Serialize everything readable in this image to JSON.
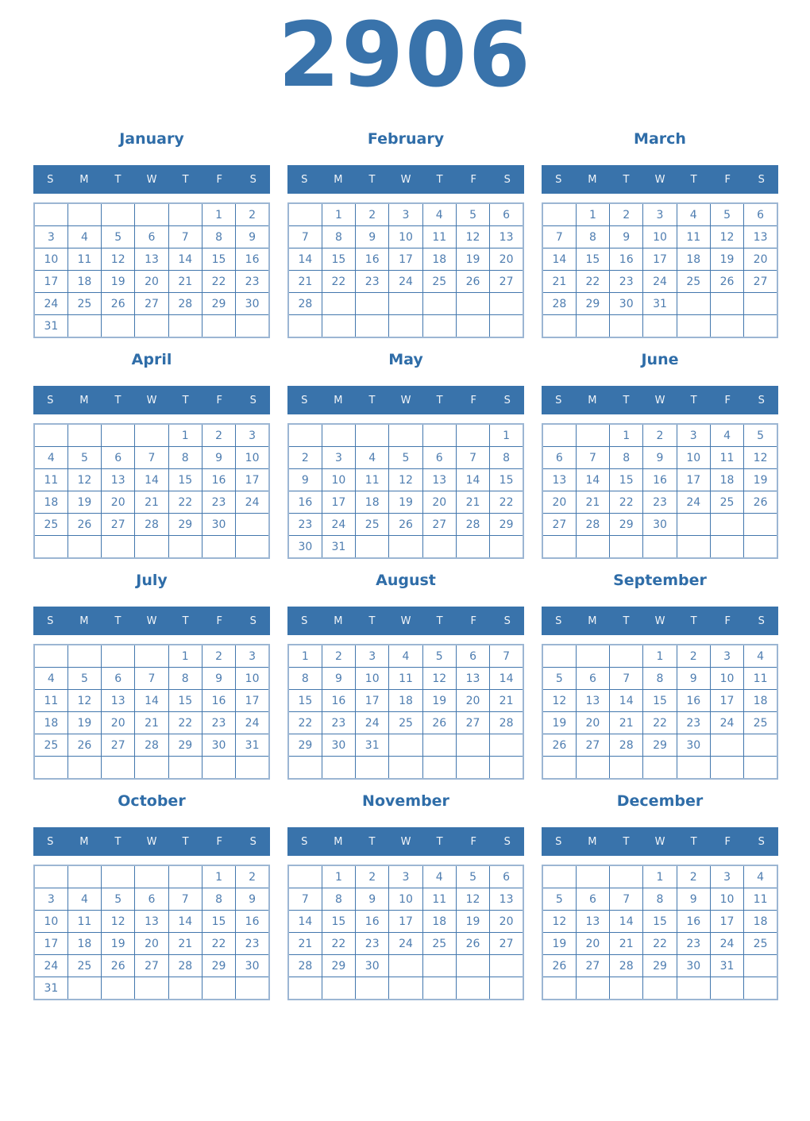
{
  "year": "2906",
  "weekday_headers": [
    "S",
    "M",
    "T",
    "W",
    "T",
    "F",
    "S"
  ],
  "colors": {
    "accent_blue": "#3973ab",
    "month_title_text": "#2f6da8",
    "day_number_text": "#4e7db0",
    "grid_inner_border": "#4377ad",
    "grid_outer_border": "#9cb6d3",
    "weekday_header_text": "#ffffff",
    "page_background": "#ffffff"
  },
  "months": [
    {
      "name": "January",
      "weeks": [
        [
          "",
          "",
          "",
          "",
          "",
          "1",
          "2"
        ],
        [
          "3",
          "4",
          "5",
          "6",
          "7",
          "8",
          "9"
        ],
        [
          "10",
          "11",
          "12",
          "13",
          "14",
          "15",
          "16"
        ],
        [
          "17",
          "18",
          "19",
          "20",
          "21",
          "22",
          "23"
        ],
        [
          "24",
          "25",
          "26",
          "27",
          "28",
          "29",
          "30"
        ],
        [
          "31",
          "",
          "",
          "",
          "",
          "",
          ""
        ]
      ]
    },
    {
      "name": "February",
      "weeks": [
        [
          "",
          "1",
          "2",
          "3",
          "4",
          "5",
          "6"
        ],
        [
          "7",
          "8",
          "9",
          "10",
          "11",
          "12",
          "13"
        ],
        [
          "14",
          "15",
          "16",
          "17",
          "18",
          "19",
          "20"
        ],
        [
          "21",
          "22",
          "23",
          "24",
          "25",
          "26",
          "27"
        ],
        [
          "28",
          "",
          "",
          "",
          "",
          "",
          ""
        ],
        [
          "",
          "",
          "",
          "",
          "",
          "",
          ""
        ]
      ]
    },
    {
      "name": "March",
      "weeks": [
        [
          "",
          "1",
          "2",
          "3",
          "4",
          "5",
          "6"
        ],
        [
          "7",
          "8",
          "9",
          "10",
          "11",
          "12",
          "13"
        ],
        [
          "14",
          "15",
          "16",
          "17",
          "18",
          "19",
          "20"
        ],
        [
          "21",
          "22",
          "23",
          "24",
          "25",
          "26",
          "27"
        ],
        [
          "28",
          "29",
          "30",
          "31",
          "",
          "",
          ""
        ],
        [
          "",
          "",
          "",
          "",
          "",
          "",
          ""
        ]
      ]
    },
    {
      "name": "April",
      "weeks": [
        [
          "",
          "",
          "",
          "",
          "1",
          "2",
          "3"
        ],
        [
          "4",
          "5",
          "6",
          "7",
          "8",
          "9",
          "10"
        ],
        [
          "11",
          "12",
          "13",
          "14",
          "15",
          "16",
          "17"
        ],
        [
          "18",
          "19",
          "20",
          "21",
          "22",
          "23",
          "24"
        ],
        [
          "25",
          "26",
          "27",
          "28",
          "29",
          "30",
          ""
        ],
        [
          "",
          "",
          "",
          "",
          "",
          "",
          ""
        ]
      ]
    },
    {
      "name": "May",
      "weeks": [
        [
          "",
          "",
          "",
          "",
          "",
          "",
          "1"
        ],
        [
          "2",
          "3",
          "4",
          "5",
          "6",
          "7",
          "8"
        ],
        [
          "9",
          "10",
          "11",
          "12",
          "13",
          "14",
          "15"
        ],
        [
          "16",
          "17",
          "18",
          "19",
          "20",
          "21",
          "22"
        ],
        [
          "23",
          "24",
          "25",
          "26",
          "27",
          "28",
          "29"
        ],
        [
          "30",
          "31",
          "",
          "",
          "",
          "",
          ""
        ]
      ]
    },
    {
      "name": "June",
      "weeks": [
        [
          "",
          "",
          "1",
          "2",
          "3",
          "4",
          "5"
        ],
        [
          "6",
          "7",
          "8",
          "9",
          "10",
          "11",
          "12"
        ],
        [
          "13",
          "14",
          "15",
          "16",
          "17",
          "18",
          "19"
        ],
        [
          "20",
          "21",
          "22",
          "23",
          "24",
          "25",
          "26"
        ],
        [
          "27",
          "28",
          "29",
          "30",
          "",
          "",
          ""
        ],
        [
          "",
          "",
          "",
          "",
          "",
          "",
          ""
        ]
      ]
    },
    {
      "name": "July",
      "weeks": [
        [
          "",
          "",
          "",
          "",
          "1",
          "2",
          "3"
        ],
        [
          "4",
          "5",
          "6",
          "7",
          "8",
          "9",
          "10"
        ],
        [
          "11",
          "12",
          "13",
          "14",
          "15",
          "16",
          "17"
        ],
        [
          "18",
          "19",
          "20",
          "21",
          "22",
          "23",
          "24"
        ],
        [
          "25",
          "26",
          "27",
          "28",
          "29",
          "30",
          "31"
        ],
        [
          "",
          "",
          "",
          "",
          "",
          "",
          ""
        ]
      ]
    },
    {
      "name": "August",
      "weeks": [
        [
          "1",
          "2",
          "3",
          "4",
          "5",
          "6",
          "7"
        ],
        [
          "8",
          "9",
          "10",
          "11",
          "12",
          "13",
          "14"
        ],
        [
          "15",
          "16",
          "17",
          "18",
          "19",
          "20",
          "21"
        ],
        [
          "22",
          "23",
          "24",
          "25",
          "26",
          "27",
          "28"
        ],
        [
          "29",
          "30",
          "31",
          "",
          "",
          "",
          ""
        ],
        [
          "",
          "",
          "",
          "",
          "",
          "",
          ""
        ]
      ]
    },
    {
      "name": "September",
      "weeks": [
        [
          "",
          "",
          "",
          "1",
          "2",
          "3",
          "4"
        ],
        [
          "5",
          "6",
          "7",
          "8",
          "9",
          "10",
          "11"
        ],
        [
          "12",
          "13",
          "14",
          "15",
          "16",
          "17",
          "18"
        ],
        [
          "19",
          "20",
          "21",
          "22",
          "23",
          "24",
          "25"
        ],
        [
          "26",
          "27",
          "28",
          "29",
          "30",
          "",
          ""
        ],
        [
          "",
          "",
          "",
          "",
          "",
          "",
          ""
        ]
      ]
    },
    {
      "name": "October",
      "weeks": [
        [
          "",
          "",
          "",
          "",
          "",
          "1",
          "2"
        ],
        [
          "3",
          "4",
          "5",
          "6",
          "7",
          "8",
          "9"
        ],
        [
          "10",
          "11",
          "12",
          "13",
          "14",
          "15",
          "16"
        ],
        [
          "17",
          "18",
          "19",
          "20",
          "21",
          "22",
          "23"
        ],
        [
          "24",
          "25",
          "26",
          "27",
          "28",
          "29",
          "30"
        ],
        [
          "31",
          "",
          "",
          "",
          "",
          "",
          ""
        ]
      ]
    },
    {
      "name": "November",
      "weeks": [
        [
          "",
          "1",
          "2",
          "3",
          "4",
          "5",
          "6"
        ],
        [
          "7",
          "8",
          "9",
          "10",
          "11",
          "12",
          "13"
        ],
        [
          "14",
          "15",
          "16",
          "17",
          "18",
          "19",
          "20"
        ],
        [
          "21",
          "22",
          "23",
          "24",
          "25",
          "26",
          "27"
        ],
        [
          "28",
          "29",
          "30",
          "",
          "",
          "",
          ""
        ],
        [
          "",
          "",
          "",
          "",
          "",
          "",
          ""
        ]
      ]
    },
    {
      "name": "December",
      "weeks": [
        [
          "",
          "",
          "",
          "1",
          "2",
          "3",
          "4"
        ],
        [
          "5",
          "6",
          "7",
          "8",
          "9",
          "10",
          "11"
        ],
        [
          "12",
          "13",
          "14",
          "15",
          "16",
          "17",
          "18"
        ],
        [
          "19",
          "20",
          "21",
          "22",
          "23",
          "24",
          "25"
        ],
        [
          "26",
          "27",
          "28",
          "29",
          "30",
          "31",
          ""
        ],
        [
          "",
          "",
          "",
          "",
          "",
          "",
          ""
        ]
      ]
    }
  ]
}
